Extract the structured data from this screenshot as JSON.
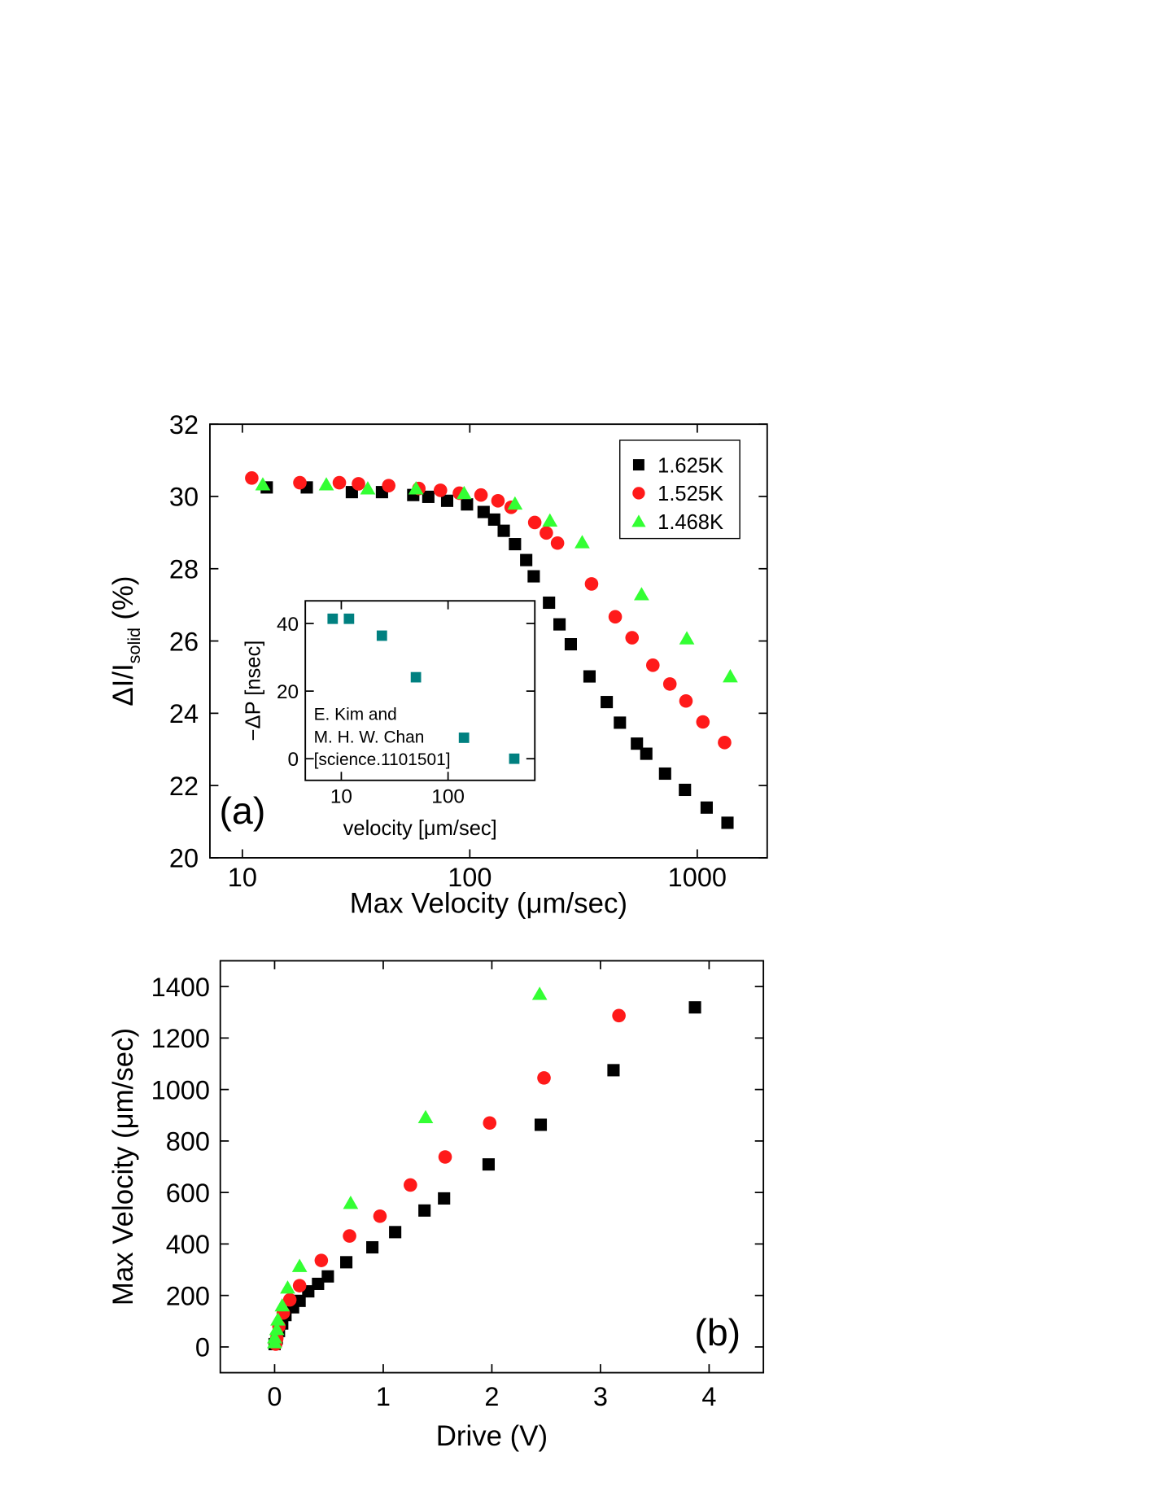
{
  "chart_data": [
    {
      "type": "scatter",
      "panel_label": "(a)",
      "xlabel": "Max Velocity (μm/sec)",
      "ylabel_parts": [
        "ΔI/I",
        "solid",
        "(%)"
      ],
      "xscale": "log",
      "xlim": [
        7.2,
        2030
      ],
      "xticks": [
        10,
        100,
        1000
      ],
      "ylim": [
        20,
        32
      ],
      "yticks": [
        20,
        22,
        24,
        26,
        28,
        30,
        32
      ],
      "legend": "upper right",
      "series": [
        {
          "name": "1.625K",
          "color": "#000000",
          "marker": "square",
          "x": [
            12.8,
            19.2,
            30.3,
            41.1,
            56.4,
            65.7,
            79.5,
            97.2,
            115,
            128,
            141,
            158,
            177,
            191,
            223,
            248,
            278,
            336,
            400,
            457,
            543,
            597,
            722,
            883,
            1100,
            1358
          ],
          "values": [
            30.25,
            30.25,
            30.12,
            30.12,
            30.04,
            29.99,
            29.88,
            29.78,
            29.57,
            29.36,
            29.05,
            28.68,
            28.24,
            27.79,
            27.06,
            26.46,
            25.91,
            25.02,
            24.31,
            23.74,
            23.16,
            22.88,
            22.33,
            21.88,
            21.39,
            20.97
          ]
        },
        {
          "name": "1.525K",
          "color": "#ff1a1a",
          "marker": "circle",
          "x": [
            11.0,
            17.9,
            26.7,
            32.4,
            44.0,
            59.7,
            74.3,
            90.0,
            112,
            133,
            152,
            193,
            217,
            243,
            343,
            436,
            517,
            638,
            758,
            892,
            1059,
            1319
          ],
          "values": [
            30.51,
            30.38,
            30.38,
            30.35,
            30.3,
            30.22,
            30.17,
            30.09,
            30.04,
            29.88,
            29.7,
            29.28,
            28.99,
            28.71,
            27.58,
            26.67,
            26.09,
            25.33,
            24.81,
            24.34,
            23.76,
            23.19
          ]
        },
        {
          "name": "1.468K",
          "color": "#33ff33",
          "marker": "triangle",
          "x": [
            12.3,
            23.4,
            35.6,
            58.0,
            94.4,
            158,
            225,
            312,
            569,
            900,
            1397
          ],
          "values": [
            30.33,
            30.33,
            30.22,
            30.22,
            30.09,
            29.8,
            29.33,
            28.73,
            27.29,
            26.07,
            25.02
          ]
        }
      ]
    },
    {
      "type": "scatter",
      "xlabel": "velocity [μm/sec]",
      "ylabel": "−ΔP [nsec]",
      "annotation_lines": [
        "E. Kim and",
        "M. H. W. Chan",
        "[science.1101501]"
      ],
      "xscale": "log",
      "xlim": [
        4.6,
        650
      ],
      "xticks": [
        10,
        100
      ],
      "ylim": [
        -6.4,
        46.7
      ],
      "yticks": [
        0,
        20,
        40
      ],
      "series": [
        {
          "color": "#008080",
          "marker": "square",
          "x": [
            8.3,
            11.8,
            24,
            50,
            141,
            417
          ],
          "values": [
            41.4,
            41.4,
            36.4,
            24.1,
            6.2,
            0
          ]
        }
      ]
    },
    {
      "type": "scatter",
      "panel_label": "(b)",
      "xlabel": "Drive (V)",
      "ylabel": "Max Velocity (μm/sec)",
      "xlim": [
        -0.5,
        4.5
      ],
      "xticks": [
        0,
        1,
        2,
        3,
        4
      ],
      "ylim": [
        -100,
        1500
      ],
      "yticks": [
        0,
        200,
        400,
        600,
        800,
        1000,
        1200,
        1400
      ],
      "series": [
        {
          "name": "1.625K",
          "color": "#000000",
          "marker": "square",
          "x": [
            3.87,
            3.12,
            2.45,
            1.97,
            1.56,
            1.38,
            1.11,
            0.9,
            0.66,
            0.49,
            0.4,
            0.31,
            0.23,
            0.17,
            0.1,
            0.07,
            0.04,
            0.02,
            0.0
          ],
          "values": [
            1319,
            1075,
            863,
            709,
            577,
            530,
            446,
            387,
            329,
            274,
            245,
            216,
            179,
            154,
            124,
            91,
            62,
            33,
            11
          ]
        },
        {
          "name": "1.525K",
          "color": "#ff1a1a",
          "marker": "circle",
          "x": [
            3.17,
            2.48,
            1.98,
            1.57,
            1.25,
            0.97,
            0.69,
            0.43,
            0.23,
            0.14,
            0.08,
            0.04,
            0.02,
            0.01
          ],
          "values": [
            1287,
            1045,
            870,
            738,
            629,
            508,
            431,
            336,
            238,
            183,
            132,
            80,
            33,
            11
          ]
        },
        {
          "name": "1.468K",
          "color": "#33ff33",
          "marker": "triangle",
          "x": [
            2.44,
            1.39,
            0.7,
            0.23,
            0.12,
            0.07,
            0.03,
            0.02,
            0.0,
            0.0
          ],
          "values": [
            1371,
            892,
            559,
            314,
            230,
            161,
            106,
            69,
            37,
            18
          ]
        }
      ]
    }
  ]
}
